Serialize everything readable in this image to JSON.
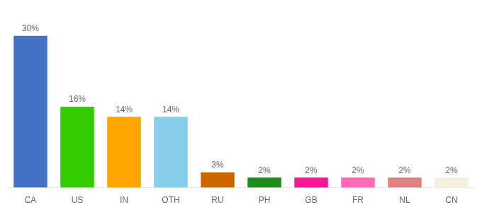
{
  "chart_data": {
    "type": "bar",
    "categories": [
      "CA",
      "US",
      "IN",
      "OTH",
      "RU",
      "PH",
      "GB",
      "FR",
      "NL",
      "CN"
    ],
    "values": [
      30,
      16,
      14,
      14,
      3,
      2,
      2,
      2,
      2,
      2
    ],
    "value_labels": [
      "30%",
      "16%",
      "14%",
      "14%",
      "3%",
      "2%",
      "2%",
      "2%",
      "2%",
      "2%"
    ],
    "colors": [
      "#4472C4",
      "#33CC00",
      "#FFA500",
      "#87CEEB",
      "#CC6600",
      "#1E8B1E",
      "#FF1493",
      "#FF69B4",
      "#E08080",
      "#F5F0DC"
    ],
    "ylim": [
      0,
      34
    ],
    "grid": false,
    "data_labels": true,
    "tick_labels": "x"
  }
}
